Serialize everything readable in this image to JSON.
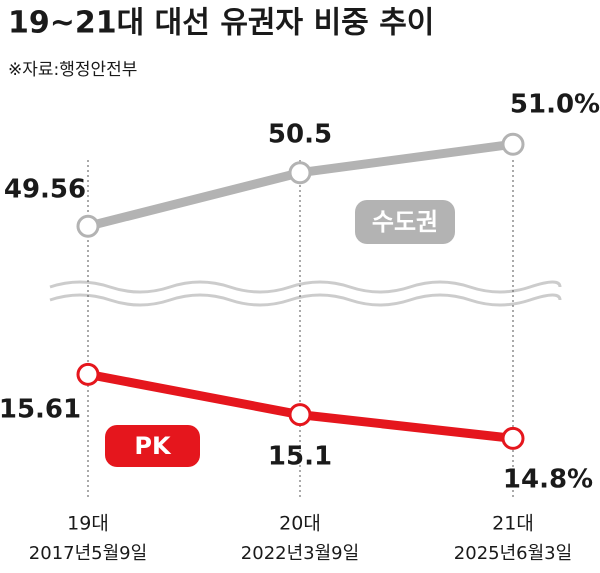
{
  "chart_data": {
    "type": "line",
    "title": "19~21대 대선 유권자 비중 추이",
    "source": "※자료:행정안전부",
    "categories": [
      "19대",
      "20대",
      "21대"
    ],
    "category_dates": [
      "2017년5월9일",
      "2022년3월9일",
      "2025년6월3일"
    ],
    "series": [
      {
        "name": "수도권",
        "color": "#b3b3b3",
        "values": [
          49.56,
          50.5,
          51.0
        ],
        "value_labels": [
          "49.56",
          "50.5",
          "51.0%"
        ],
        "ylim": [
          48.6,
          51.6
        ]
      },
      {
        "name": "PK",
        "color": "#e5161d",
        "values": [
          15.61,
          15.1,
          14.8
        ],
        "value_labels": [
          "15.61",
          "15.1",
          "14.8%"
        ],
        "ylim": [
          14.4,
          16.55
        ]
      }
    ],
    "grid": true
  }
}
